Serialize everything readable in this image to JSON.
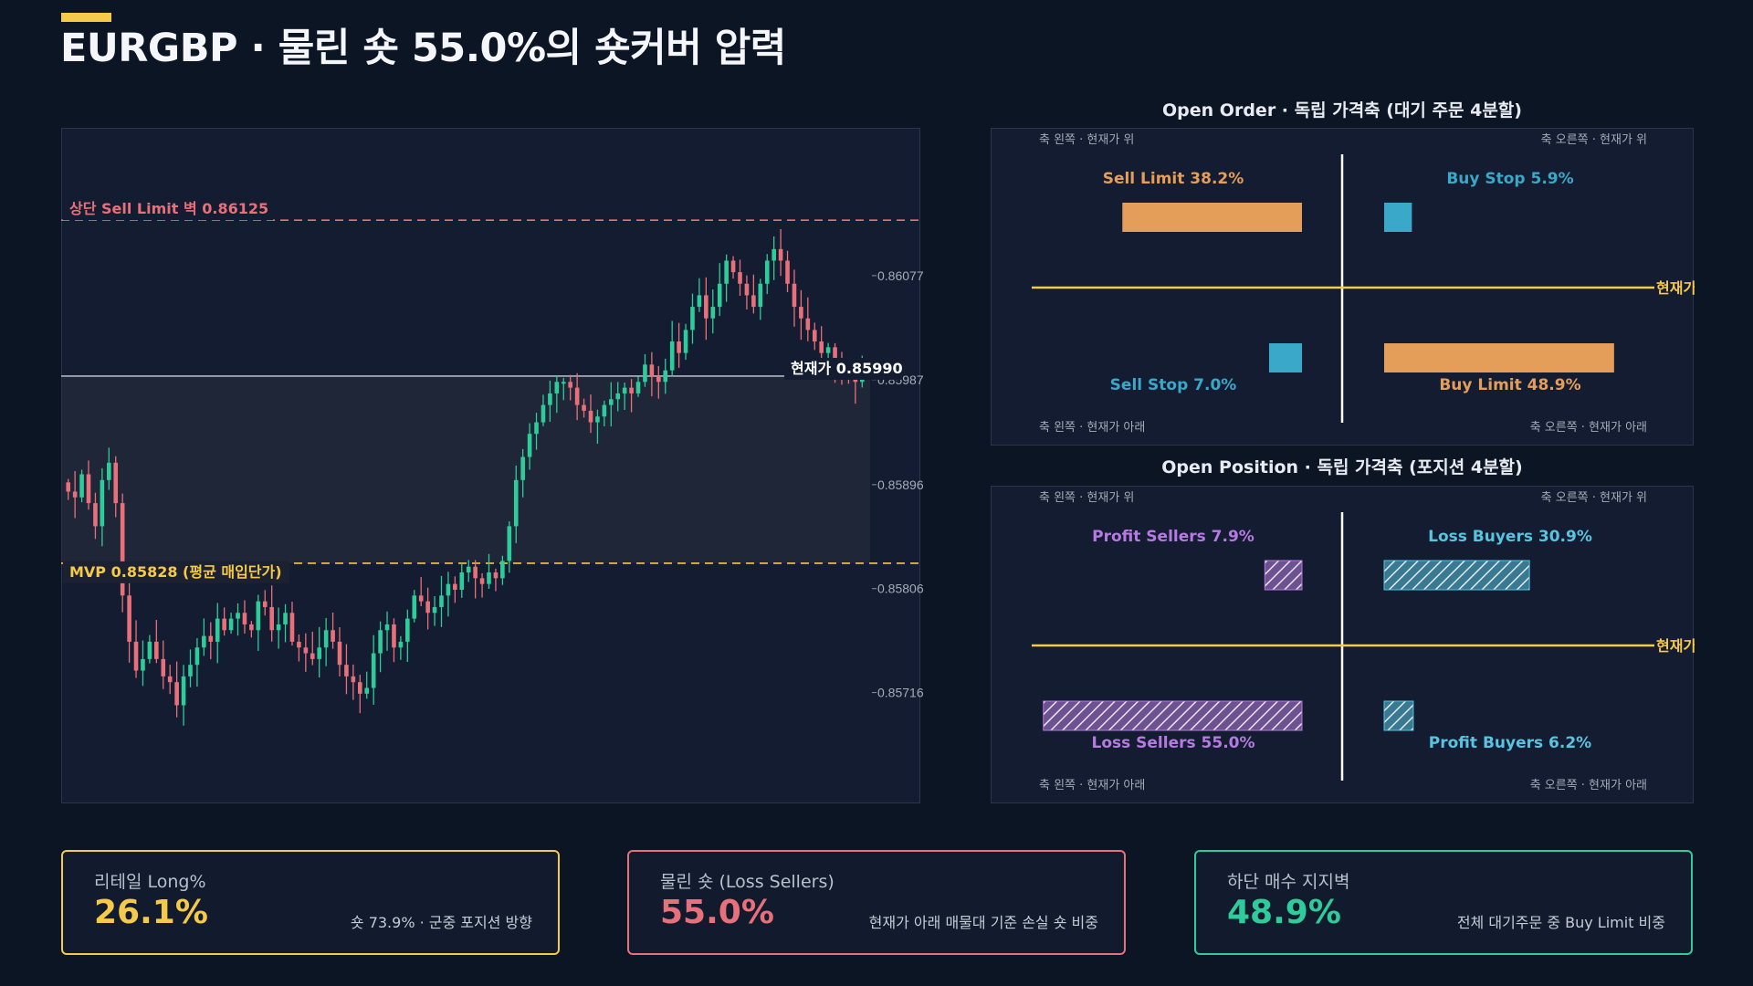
{
  "title": "EURGBP · 물린 숏 55.0%의 숏커버 압력",
  "colors": {
    "bull": "#2ecc9a",
    "bear": "#e8707a",
    "gold": "#f5c94a",
    "red": "#e8707a",
    "orange": "#e59e5a",
    "blue": "#3aa8c8",
    "purple": "#b57be0",
    "cyan": "#58c4e0"
  },
  "main_chart": {
    "sell_wall_label": "상단 Sell Limit 벽 0.86125",
    "mvp_label": "MVP 0.85828 (평균 매입단가)",
    "current_label": "현재가 0.85990"
  },
  "chart_data": {
    "type": "candlestick",
    "y_ticks": [
      "0.86077",
      "0.85987",
      "0.85896",
      "0.85806",
      "0.85716"
    ],
    "ylim": [
      0.8562,
      0.86205
    ],
    "levels": {
      "sell_wall": 0.86125,
      "current": 0.8599,
      "mvp": 0.85828
    },
    "closes": [
      0.8589,
      0.85885,
      0.85905,
      0.8588,
      0.8586,
      0.859,
      0.85915,
      0.8588,
      0.858,
      0.8576,
      0.85735,
      0.85745,
      0.8576,
      0.85745,
      0.8573,
      0.85725,
      0.85705,
      0.8573,
      0.8574,
      0.85755,
      0.85765,
      0.8576,
      0.8578,
      0.8577,
      0.8578,
      0.85785,
      0.85775,
      0.8577,
      0.85795,
      0.8579,
      0.8577,
      0.85775,
      0.85785,
      0.8576,
      0.85755,
      0.8575,
      0.85745,
      0.85755,
      0.8577,
      0.8576,
      0.8574,
      0.8573,
      0.85725,
      0.85715,
      0.8572,
      0.8575,
      0.8577,
      0.85775,
      0.85755,
      0.8576,
      0.8578,
      0.858,
      0.85795,
      0.85785,
      0.8579,
      0.858,
      0.8581,
      0.85805,
      0.8582,
      0.85825,
      0.85815,
      0.8581,
      0.8582,
      0.85815,
      0.8583,
      0.8586,
      0.859,
      0.8592,
      0.8594,
      0.8595,
      0.85965,
      0.85975,
      0.85985,
      0.85985,
      0.8598,
      0.85965,
      0.8596,
      0.8595,
      0.85955,
      0.85965,
      0.8597,
      0.85975,
      0.8598,
      0.85975,
      0.85985,
      0.86,
      0.8599,
      0.85985,
      0.85995,
      0.8602,
      0.8601,
      0.8603,
      0.8605,
      0.8606,
      0.8604,
      0.8605,
      0.8607,
      0.8609,
      0.8608,
      0.8607,
      0.8606,
      0.8605,
      0.8607,
      0.8609,
      0.861,
      0.8609,
      0.8607,
      0.8605,
      0.8604,
      0.8603,
      0.8602,
      0.8601,
      0.86015,
      0.86,
      0.85995,
      0.8599,
      0.85985,
      0.8599
    ],
    "x_label": "",
    "y_label": ""
  },
  "open_order": {
    "title": "Open Order · 독립 가격축 (대기 주문 4분할)",
    "corner_tl": "축 왼쪽 · 현재가 위",
    "corner_tr": "축 오른쪽 · 현재가 위",
    "corner_bl": "축 왼쪽 · 현재가 아래",
    "corner_br": "축 오른쪽 · 현재가 아래",
    "price_label": "현재가",
    "quadrants": [
      {
        "label": "Sell Limit 38.2%",
        "value": 38.2,
        "pos": "tl",
        "color": "#e59e5a",
        "hatched": false
      },
      {
        "label": "Buy Stop 5.9%",
        "value": 5.9,
        "pos": "tr",
        "color": "#3aa8c8",
        "hatched": false
      },
      {
        "label": "Sell Stop 7.0%",
        "value": 7.0,
        "pos": "bl",
        "color": "#3aa8c8",
        "hatched": false
      },
      {
        "label": "Buy Limit 48.9%",
        "value": 48.9,
        "pos": "br",
        "color": "#e59e5a",
        "hatched": false
      }
    ]
  },
  "open_position": {
    "title": "Open Position · 독립 가격축 (포지션 4분할)",
    "corner_tl": "축 왼쪽 · 현재가 위",
    "corner_tr": "축 오른쪽 · 현재가 위",
    "corner_bl": "축 왼쪽 · 현재가 아래",
    "corner_br": "축 오른쪽 · 현재가 아래",
    "price_label": "현재가",
    "quadrants": [
      {
        "label": "Profit Sellers 7.9%",
        "value": 7.9,
        "pos": "tl",
        "color": "#b57be0",
        "hatched": true
      },
      {
        "label": "Loss Buyers 30.9%",
        "value": 30.9,
        "pos": "tr",
        "color": "#58c4e0",
        "hatched": true
      },
      {
        "label": "Loss Sellers 55.0%",
        "value": 55.0,
        "pos": "bl",
        "color": "#b57be0",
        "hatched": true
      },
      {
        "label": "Profit Buyers 6.2%",
        "value": 6.2,
        "pos": "br",
        "color": "#58c4e0",
        "hatched": true
      }
    ]
  },
  "cards": [
    {
      "label": "리테일 Long%",
      "value": "26.1%",
      "note": "숏 73.9% · 군중 포지션 방향",
      "color": "#f5c94a"
    },
    {
      "label": "물린 숏 (Loss Sellers)",
      "value": "55.0%",
      "note": "현재가 아래 매물대 기준 손실 숏 비중",
      "color": "#e8707a"
    },
    {
      "label": "하단 매수 지지벽",
      "value": "48.9%",
      "note": "전체 대기주문 중 Buy Limit 비중",
      "color": "#2ecc9a"
    }
  ]
}
